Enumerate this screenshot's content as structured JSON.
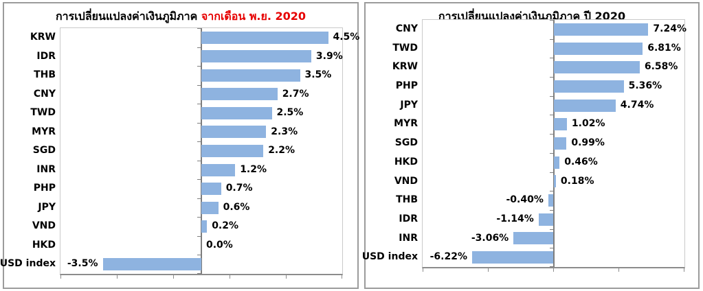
{
  "colors": {
    "bar_fill": "#8EB3E0",
    "title_highlight": "#E60000",
    "axis_line": "#8C8C8C",
    "zero_line": "#7D7D7D",
    "plot_border": "#C9C9C9",
    "panel_border": "#9B9B9B",
    "text": "#000000"
  },
  "chart_data": [
    {
      "type": "bar",
      "orientation": "horizontal",
      "title_main": "การเปลี่ยนแปลงค่าเงินภูมิภาค ",
      "title_accent": "จากเดือน พ.ย. 2020",
      "categories": [
        "KRW",
        "IDR",
        "THB",
        "CNY",
        "TWD",
        "MYR",
        "SGD",
        "INR",
        "PHP",
        "JPY",
        "VND",
        "HKD",
        "USD index"
      ],
      "values": [
        4.5,
        3.9,
        3.5,
        2.7,
        2.5,
        2.3,
        2.2,
        1.2,
        0.7,
        0.6,
        0.2,
        0.0,
        -3.5
      ],
      "labels": [
        "4.5%",
        "3.9%",
        "3.5%",
        "2.7%",
        "2.5%",
        "2.3%",
        "2.2%",
        "1.2%",
        "0.7%",
        "0.6%",
        "0.2%",
        "0.0%",
        "-3.5%"
      ],
      "xlim": [
        -5,
        5
      ],
      "x_ticks": [
        -5,
        -3,
        -1,
        1,
        3,
        5
      ],
      "grid": false,
      "legend": "none",
      "value_unit": "%"
    },
    {
      "type": "bar",
      "orientation": "horizontal",
      "title_main": "การเปลี่ยนแปลงค่าเงินภูมิภาค ปี 2020",
      "title_accent": "",
      "categories": [
        "CNY",
        "TWD",
        "KRW",
        "PHP",
        "JPY",
        "MYR",
        "SGD",
        "HKD",
        "VND",
        "THB",
        "IDR",
        "INR",
        "USD index"
      ],
      "values": [
        7.24,
        6.81,
        6.58,
        5.36,
        4.74,
        1.02,
        0.99,
        0.46,
        0.18,
        -0.4,
        -1.14,
        -3.06,
        -6.22
      ],
      "labels": [
        "7.24%",
        "6.81%",
        "6.58%",
        "5.36%",
        "4.74%",
        "1.02%",
        "0.99%",
        "0.46%",
        "0.18%",
        "-0.40%",
        "-1.14%",
        "-3.06%",
        "-6.22%"
      ],
      "xlim": [
        -10,
        10
      ],
      "x_ticks": [
        -10,
        -5,
        0,
        5,
        10
      ],
      "grid": false,
      "legend": "none",
      "value_unit": "%"
    }
  ]
}
